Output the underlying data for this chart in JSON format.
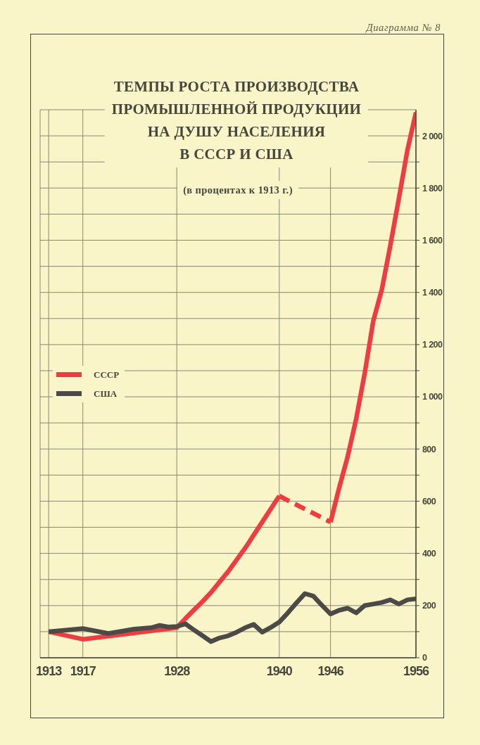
{
  "chart_data": {
    "type": "line",
    "title": "ТЕМПЫ РОСТА ПРОИЗВОДСТВА\nПРОМЫШЛЕННОЙ ПРОДУКЦИИ\nНА ДУШУ НАСЕЛЕНИЯ\nВ СССР И США",
    "subtitle": "(в процентах к 1913 г.)",
    "annotations": [
      "Диаграмма № 8"
    ],
    "series": [
      {
        "name": "СССР",
        "color": "#ee3d42",
        "x": [
          1913,
          1917,
          1928,
          1929,
          1930,
          1931,
          1932,
          1933,
          1934,
          1935,
          1936,
          1937,
          1938,
          1939,
          1940
        ],
        "values": [
          100,
          71,
          115,
          150,
          183,
          215,
          250,
          290,
          330,
          375,
          420,
          470,
          520,
          570,
          620
        ]
      },
      {
        "color": "#ee3d42",
        "line_style": "dashed",
        "x": [
          1940,
          1946
        ],
        "values": [
          620,
          520
        ]
      },
      {
        "color": "#ee3d42",
        "x": [
          1946,
          1947,
          1948,
          1949,
          1950,
          1951,
          1952,
          1953,
          1954,
          1955,
          1956
        ],
        "values": [
          520,
          650,
          770,
          915,
          1090,
          1290,
          1410,
          1580,
          1760,
          1945,
          2090
        ]
      },
      {
        "name": "США",
        "color": "#4b4a47",
        "x": [
          1913,
          1917,
          1920,
          1923,
          1925,
          1926,
          1927,
          1928,
          1929,
          1930,
          1931,
          1932,
          1933,
          1934,
          1935,
          1936,
          1937,
          1938,
          1939,
          1940,
          1941,
          1942,
          1943,
          1944,
          1945,
          1946,
          1947,
          1948,
          1949,
          1950,
          1951,
          1952,
          1953,
          1954,
          1955,
          1956
        ],
        "values": [
          100,
          112,
          93,
          110,
          115,
          124,
          118,
          120,
          130,
          107,
          85,
          62,
          76,
          84,
          98,
          115,
          128,
          98,
          116,
          137,
          172,
          210,
          246,
          236,
          201,
          168,
          182,
          190,
          172,
          200,
          206,
          212,
          222,
          206,
          222,
          226
        ]
      }
    ],
    "xlim": [
      1912,
      1956
    ],
    "xticks": [
      1913,
      1917,
      1928,
      1940,
      1946,
      1956
    ],
    "ylim": [
      0,
      2100
    ],
    "yticks": [
      0,
      {
        "value": 100,
        "label": null
      },
      200,
      {
        "value": 300,
        "label": null
      },
      400,
      {
        "value": 500,
        "label": null
      },
      600,
      {
        "value": 700,
        "label": null
      },
      800,
      {
        "value": 900,
        "label": null
      },
      {
        "value": 1000,
        "label": "1 000"
      },
      {
        "value": 1100,
        "label": null
      },
      {
        "value": 1200,
        "label": "1 200"
      },
      {
        "value": 1300,
        "label": null
      },
      {
        "value": 1400,
        "label": "1 400"
      },
      {
        "value": 1500,
        "label": null
      },
      {
        "value": 1600,
        "label": "1 600"
      },
      {
        "value": 1700,
        "label": null
      },
      {
        "value": 1800,
        "label": "1 800"
      },
      {
        "value": 1900,
        "label": null
      },
      {
        "value": 2000,
        "label": "2 000"
      }
    ],
    "grid": true,
    "legend": "left",
    "line_style": "solid"
  }
}
